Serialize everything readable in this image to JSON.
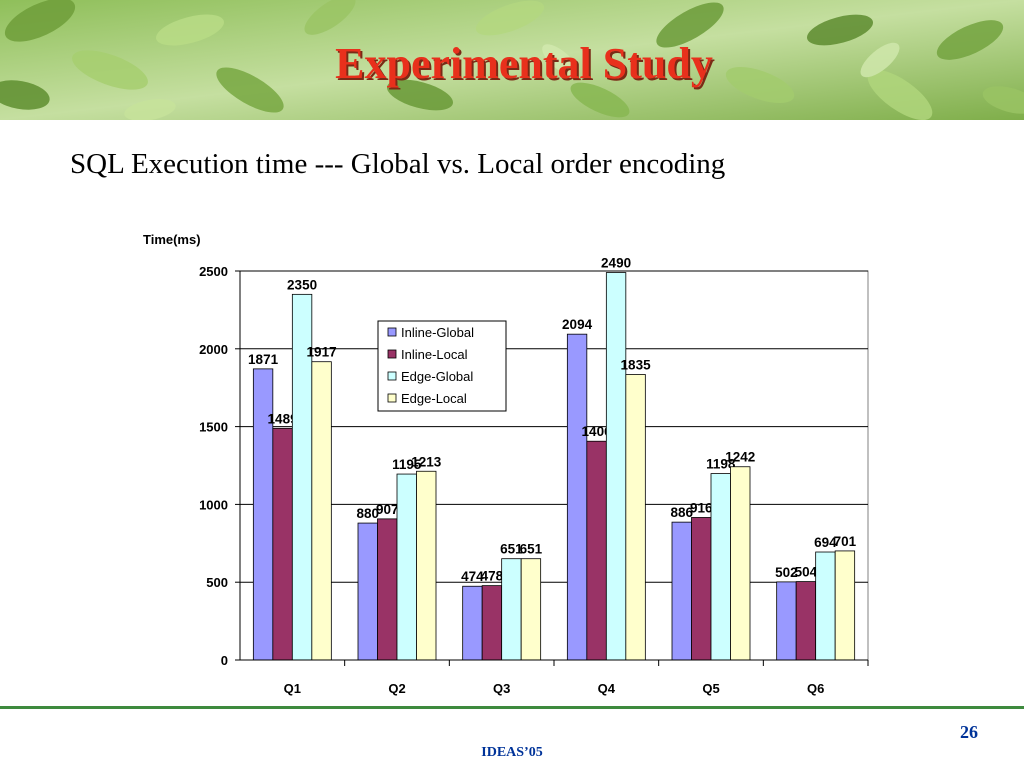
{
  "slide": {
    "title": "Experimental Study",
    "subtitle": "SQL Execution time   --- Global vs. Local order encoding",
    "page_number": "26",
    "footer": "IDEAS’05"
  },
  "colors": {
    "title": "#e8301c",
    "footer_text": "#003399",
    "footer_line": "#3e8a3e"
  },
  "chart_data": {
    "type": "bar",
    "title": "",
    "ylabel": "Time(ms)",
    "xlabel": "",
    "ylim": [
      0,
      2500
    ],
    "yticks": [
      0,
      500,
      1000,
      1500,
      2000,
      2500
    ],
    "grid": true,
    "legend_position": "top-center",
    "categories": [
      "Q1",
      "Q2",
      "Q3",
      "Q4",
      "Q5",
      "Q6"
    ],
    "series": [
      {
        "name": "Inline-Global",
        "color": "#9999ff",
        "values": [
          1871,
          880,
          474,
          2094,
          886,
          502
        ]
      },
      {
        "name": "Inline-Local",
        "color": "#993366",
        "values": [
          1489,
          907,
          478,
          1406,
          916,
          504
        ]
      },
      {
        "name": "Edge-Global",
        "color": "#ccffff",
        "values": [
          2350,
          1195,
          651,
          2490,
          1198,
          694
        ]
      },
      {
        "name": "Edge-Local",
        "color": "#ffffcc",
        "values": [
          1917,
          1213,
          651,
          1835,
          1242,
          701
        ]
      }
    ]
  }
}
